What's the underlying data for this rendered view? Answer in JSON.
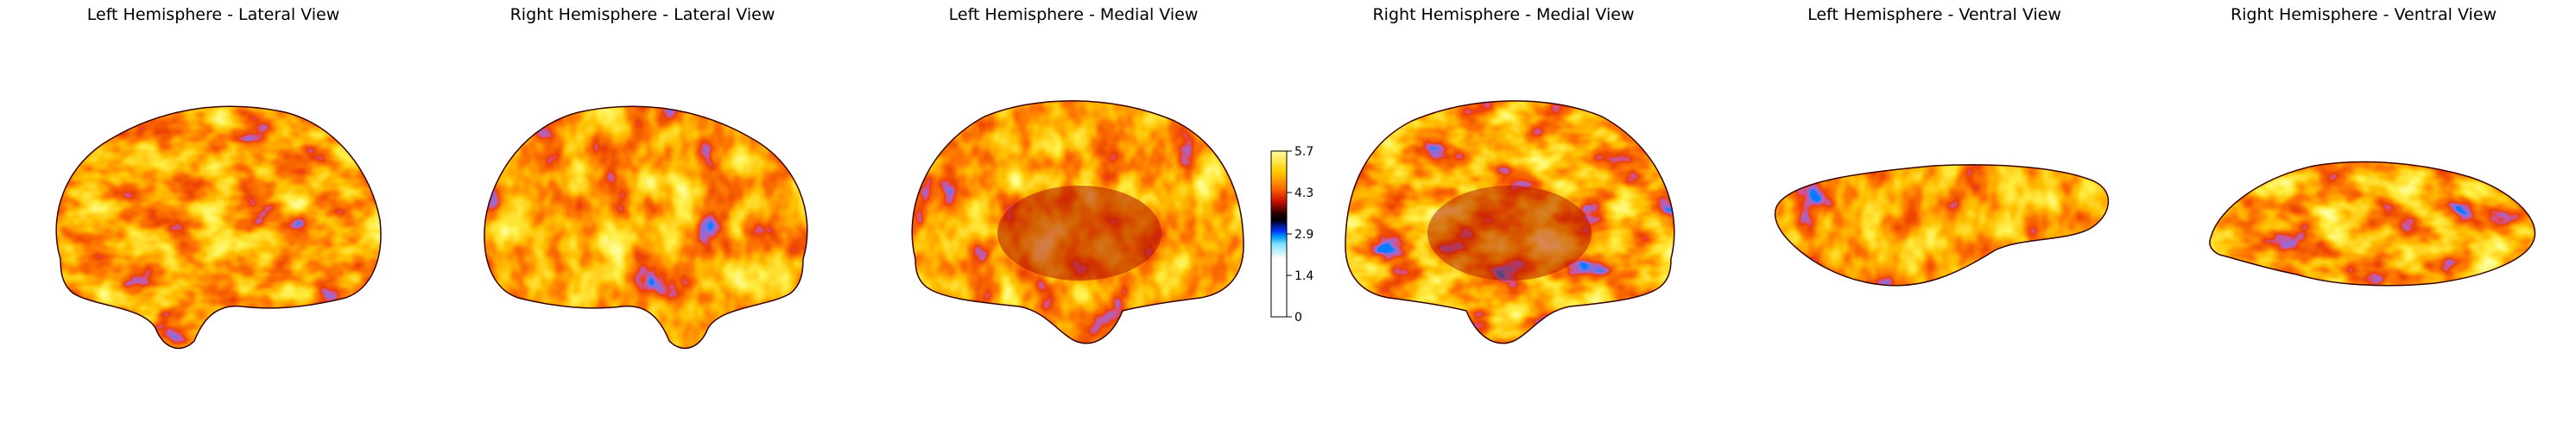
{
  "views": [
    {
      "title": "Left Hemisphere - Lateral View"
    },
    {
      "title": "Right Hemisphere - Lateral View"
    },
    {
      "title": "Left Hemisphere - Medial View"
    },
    {
      "title": "Right Hemisphere - Medial View"
    },
    {
      "title": "Left Hemisphere - Ventral View"
    },
    {
      "title": "Right Hemisphere - Ventral View"
    }
  ],
  "colorbar": {
    "ticks": [
      "5.7",
      "4.3",
      "2.9",
      "1.4",
      "0"
    ],
    "min": 0,
    "max": 5.7
  },
  "colors": {
    "high": "#ffff60",
    "mid_high": "#ff7a00",
    "mid": "#d01000",
    "low_mid": "#000000",
    "low": "#0033ff",
    "lowest": "#ffffff"
  }
}
